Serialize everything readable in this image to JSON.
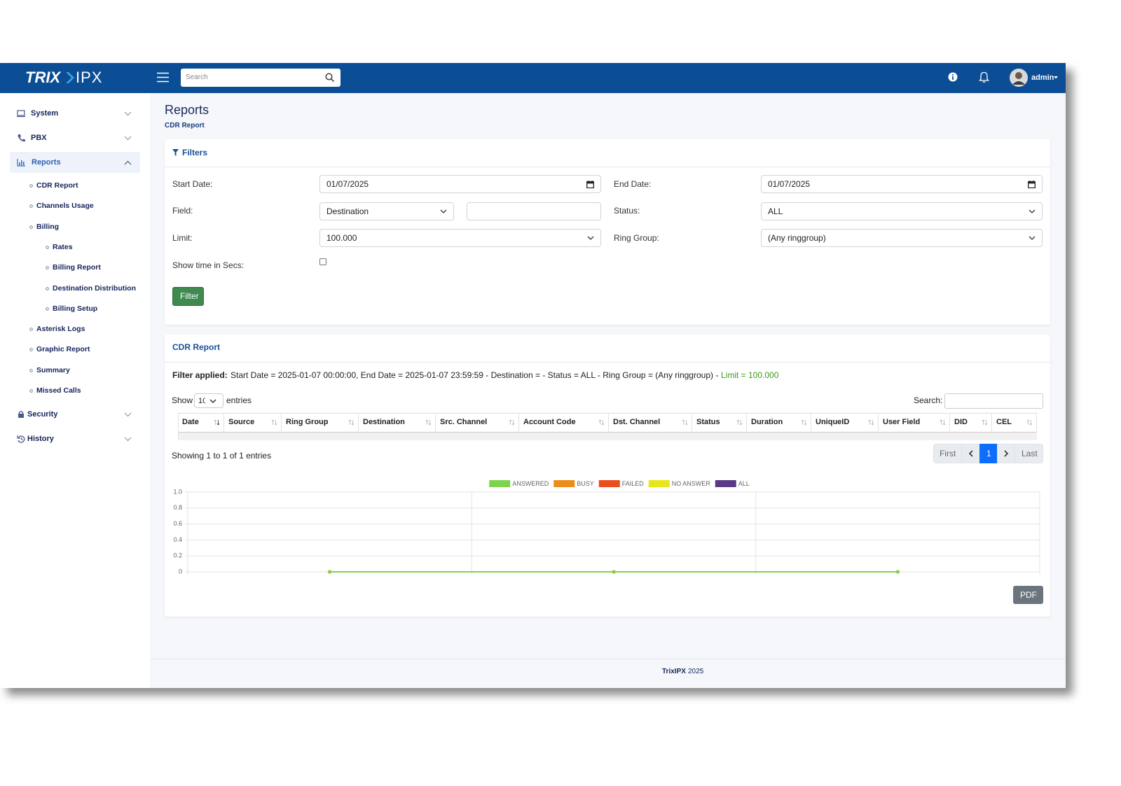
{
  "brand": {
    "bold": "TRIX",
    "light": "IPX"
  },
  "header": {
    "search_placeholder": "Search",
    "user": "admin"
  },
  "sidebar": {
    "sections": [
      {
        "label": "System"
      },
      {
        "label": "PBX"
      },
      {
        "label": "Reports",
        "items": [
          {
            "label": "CDR Report"
          },
          {
            "label": "Channels Usage"
          },
          {
            "label": "Billing",
            "items": [
              {
                "label": "Rates"
              },
              {
                "label": "Billing Report"
              },
              {
                "label": "Destination Distribution"
              },
              {
                "label": "Billing Setup"
              }
            ]
          },
          {
            "label": "Asterisk Logs"
          },
          {
            "label": "Graphic Report"
          },
          {
            "label": "Summary"
          },
          {
            "label": "Missed Calls"
          }
        ]
      },
      {
        "label": "Security"
      },
      {
        "label": "History"
      }
    ]
  },
  "page": {
    "title": "Reports",
    "breadcrumb": "CDR Report"
  },
  "filters": {
    "title": "Filters",
    "start_date_label": "Start Date:",
    "start_date": "01/07/2025",
    "end_date_label": "End Date:",
    "end_date": "01/07/2025",
    "field_label": "Field:",
    "field": "Destination",
    "status_label": "Status:",
    "status": "ALL",
    "limit_label": "Limit:",
    "limit": "100.000",
    "ring_group_label": "Ring Group:",
    "ring_group": "(Any ringgroup)",
    "show_secs_label": "Show time in Secs:",
    "button": "Filter"
  },
  "report": {
    "title": "CDR Report",
    "filter_applied_label": "Filter applied:",
    "filter_applied_text": "Start Date = 2025-01-07 00:00:00, End Date = 2025-01-07 23:59:59 - Destination = - Status = ALL - Ring Group = (Any ringgroup) -",
    "limit_text": "Limit = 100.000",
    "show": "Show",
    "entries_value": "10",
    "entries": "entries",
    "search": "Search:",
    "columns": [
      "Date",
      "Source",
      "Ring Group",
      "Destination",
      "Src. Channel",
      "Account Code",
      "Dst. Channel",
      "Status",
      "Duration",
      "UniqueID",
      "User Field",
      "DID",
      "CEL"
    ],
    "info": "Showing 1 to 1 of 1 entries",
    "pagination": {
      "first": "First",
      "current": "1",
      "last": "Last"
    },
    "pdf": "PDF"
  },
  "chart_data": {
    "type": "line",
    "categories": [
      null,
      null,
      null
    ],
    "series": [
      {
        "name": "ANSWERED",
        "color": "#7ed34f",
        "values": [
          0,
          0,
          0
        ]
      },
      {
        "name": "BUSY",
        "color": "#ec8c1a",
        "values": [
          0,
          0,
          0
        ]
      },
      {
        "name": "FAILED",
        "color": "#ea4e1b",
        "values": [
          0,
          0,
          0
        ]
      },
      {
        "name": "NO ANSWER",
        "color": "#e6e61a",
        "values": [
          0,
          0,
          0
        ]
      },
      {
        "name": "ALL",
        "color": "#5a3a86",
        "values": [
          0,
          0,
          0
        ]
      }
    ],
    "ylim": [
      0,
      1
    ],
    "yticks": [
      0,
      0.2,
      0.4,
      0.6,
      0.8,
      {
        "value": 1,
        "label": "1.0"
      }
    ],
    "grid": true
  },
  "footer": {
    "brand": "TrixIPX",
    "year": "2025"
  }
}
